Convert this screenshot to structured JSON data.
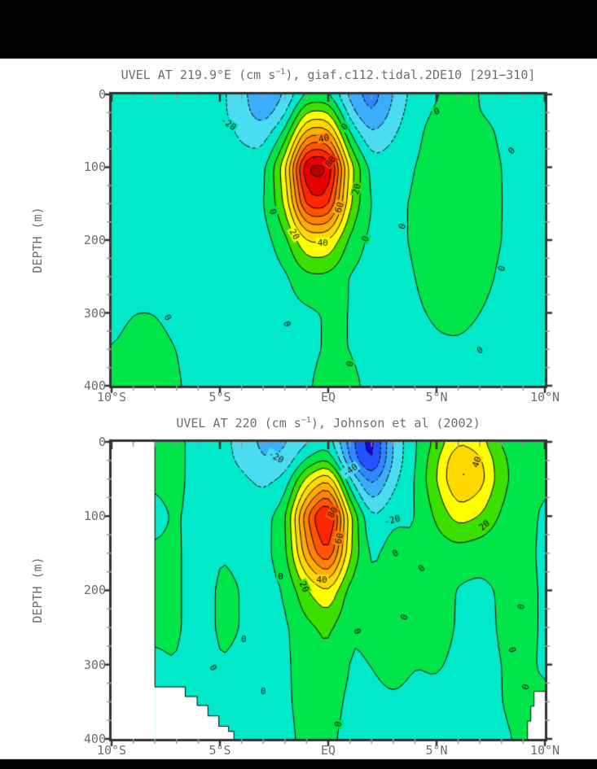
{
  "page": {
    "bg": "#000000",
    "paper": "#ffffff",
    "text_color": "#6e6e6e"
  },
  "palette": {
    "start": -60,
    "step": 10,
    "colors": [
      "#1C00D8",
      "#2353FF",
      "#2F86FF",
      "#3AAEFA",
      "#4ADDF2",
      "#00E9C8",
      "#00E54A",
      "#3BDF00",
      "#FFFF00",
      "#FFD800",
      "#FFAE00",
      "#FF8300",
      "#FF5500",
      "#FF2600",
      "#E60000",
      "#BC0000"
    ],
    "contour_line_color": "#000000",
    "frame_color": "#333333",
    "minor_tick_color": "#999999"
  },
  "chart_data": [
    {
      "type": "filled_contour",
      "title_pre": "UVEL AT 219.9°E (cm s",
      "title_sup": "−1",
      "title_post": "), giaf.c112.tidal.2DE10 [291−310]",
      "ylabel": "DEPTH (m)",
      "units": "cm s-1",
      "x_ticks": [
        "10°S",
        "5°S",
        "EQ",
        "5°N",
        "10°N"
      ],
      "y_ticks": [
        "0",
        "100",
        "200",
        "300",
        "400"
      ],
      "xlim": [
        -10,
        10
      ],
      "ylim": [
        0,
        400
      ],
      "x_minor_step": 1,
      "y_minor_step": 25,
      "contour_interval": 10,
      "lats": [
        -10,
        -9,
        -8,
        -7,
        -6,
        -5,
        -4,
        -3,
        -2,
        -1,
        0,
        1,
        2,
        3,
        4,
        5,
        6,
        7,
        8,
        9,
        10
      ],
      "depths": [
        0,
        25,
        50,
        100,
        150,
        200,
        250,
        300,
        350,
        400
      ],
      "values": [
        [
          -5,
          -5,
          -5,
          -5,
          -5,
          -7,
          -17,
          -29,
          -20,
          1,
          1,
          -24,
          -36,
          -20,
          -5,
          0,
          1,
          0,
          -2,
          -4,
          -5
        ],
        [
          -5,
          -5,
          -5,
          -5,
          -5,
          -7,
          -16,
          -26,
          -13,
          22,
          22,
          -16,
          -32,
          -17,
          -3,
          1,
          2,
          0,
          -2,
          -4,
          -5
        ],
        [
          -5,
          -5,
          -5,
          -5,
          -5,
          -6,
          -12,
          -17,
          0,
          44,
          44,
          -3,
          -22,
          -12,
          -2,
          3,
          3,
          2,
          -1,
          -3,
          -4
        ],
        [
          -5,
          -5,
          -5,
          -5,
          -5,
          -5,
          -6,
          -4,
          26,
          95,
          95,
          24,
          -5,
          -4,
          0,
          4,
          5,
          3,
          0,
          -3,
          -4
        ],
        [
          -5,
          -5,
          -5,
          -5,
          -5,
          -5,
          -5,
          -2,
          20,
          76,
          76,
          20,
          -2,
          -2,
          1,
          5,
          6,
          4,
          0,
          -3,
          -4
        ],
        [
          -4,
          -4,
          -4,
          -4,
          -5,
          -5,
          -5,
          -4,
          6,
          31,
          31,
          7,
          -3,
          -2,
          1,
          5,
          6,
          3,
          0,
          -3,
          -4
        ],
        [
          -3,
          -2,
          -2,
          -3,
          -4,
          -5,
          -5,
          -5,
          -2,
          8,
          8,
          -1,
          -4,
          -3,
          0,
          3,
          4,
          2,
          -1,
          -3,
          -4
        ],
        [
          -2,
          0,
          0,
          -2,
          -4,
          -5,
          -5,
          -5,
          -4,
          -2,
          1,
          0,
          -3,
          -3,
          -1,
          1,
          2,
          0,
          -2,
          -4,
          -5
        ],
        [
          0,
          2,
          2,
          0,
          -3,
          -4,
          -5,
          -5,
          -4,
          -2,
          1,
          0,
          -3,
          -3,
          -3,
          -1,
          -1,
          -2,
          -3,
          -4,
          -5
        ],
        [
          1,
          3,
          3,
          1,
          -3,
          -4,
          -5,
          -4,
          -4,
          -1,
          3,
          2,
          -2,
          -4,
          -4,
          -3,
          -3,
          -3,
          -4,
          -5,
          -5
        ]
      ],
      "labels": [
        {
          "lat": -4.6,
          "z": 40,
          "t": "-20",
          "r": 35
        },
        {
          "lat": -0.2,
          "z": 60,
          "t": "40",
          "r": -10
        },
        {
          "lat": 0.1,
          "z": 92,
          "t": "80",
          "r": -50
        },
        {
          "lat": 0.5,
          "z": 155,
          "t": "60",
          "r": -72
        },
        {
          "lat": -1.55,
          "z": 192,
          "t": "20",
          "r": 60
        },
        {
          "lat": -0.25,
          "z": 203,
          "t": "40",
          "r": 0
        },
        {
          "lat": 1.3,
          "z": 130,
          "t": "20",
          "r": -75
        },
        {
          "lat": -2.55,
          "z": 161,
          "t": "0",
          "r": 70
        },
        {
          "lat": 1.7,
          "z": 198,
          "t": "0",
          "r": -70
        },
        {
          "lat": 0.75,
          "z": 44,
          "t": "0",
          "r": -45
        },
        {
          "lat": 3.4,
          "z": 181,
          "t": "0",
          "r": -70
        },
        {
          "lat": 5.0,
          "z": 23,
          "t": "0",
          "r": -20
        },
        {
          "lat": 8.45,
          "z": 77,
          "t": "0",
          "r": -45
        },
        {
          "lat": 8.0,
          "z": 239,
          "t": "0",
          "r": -70
        },
        {
          "lat": -7.4,
          "z": 306,
          "t": "0",
          "r": 60
        },
        {
          "lat": -1.9,
          "z": 315,
          "t": "0",
          "r": 75
        },
        {
          "lat": 1.0,
          "z": 370,
          "t": "0",
          "r": -80
        },
        {
          "lat": 7.0,
          "z": 351,
          "t": "0",
          "r": -30
        }
      ]
    },
    {
      "type": "filled_contour",
      "title_pre": "UVEL AT 220 (cm s",
      "title_sup": "−1",
      "title_post": "), Johnson et al (2002)",
      "ylabel": "DEPTH (m)",
      "units": "cm s-1",
      "x_ticks": [
        "10°S",
        "5°S",
        "EQ",
        "5°N",
        "10°N"
      ],
      "y_ticks": [
        "0",
        "100",
        "200",
        "300",
        "400"
      ],
      "xlim": [
        -10,
        10
      ],
      "ylim": [
        0,
        400
      ],
      "x_minor_step": 1,
      "y_minor_step": 25,
      "contour_interval": 10,
      "lats": [
        -10,
        -9,
        -8,
        -7,
        -6,
        -5,
        -4,
        -3,
        -2,
        -1,
        0,
        1,
        2,
        3,
        4,
        5,
        6,
        7,
        8,
        9,
        10
      ],
      "depths": [
        0,
        25,
        50,
        100,
        150,
        200,
        250,
        300,
        350,
        400
      ],
      "values": [
        [
          null,
          null,
          2,
          2,
          -3,
          -6,
          -14,
          -23,
          -22,
          -12,
          -4,
          -36,
          -57,
          -18,
          -1,
          13,
          29,
          24,
          8,
          4,
          3
        ],
        [
          null,
          null,
          1,
          2,
          -3,
          -6,
          -12,
          -20,
          -18,
          2,
          12,
          -31,
          -56,
          -17,
          -1,
          18,
          41,
          33,
          12,
          4,
          1
        ],
        [
          null,
          null,
          1,
          2,
          -3,
          -4,
          -8,
          -13,
          -8,
          23,
          41,
          -10,
          -37,
          -13,
          0,
          20,
          43,
          36,
          13,
          4,
          1
        ],
        [
          null,
          null,
          -2,
          1,
          -3,
          -1,
          -2,
          -4,
          6,
          60,
          92,
          22,
          -11,
          -2,
          -1,
          12,
          25,
          20,
          8,
          4,
          -2
        ],
        [
          null,
          null,
          1,
          1,
          -3,
          0,
          -1,
          -3,
          5,
          48,
          74,
          20,
          -4,
          6,
          1,
          4,
          5,
          3,
          3,
          4,
          -3
        ],
        [
          null,
          null,
          1,
          1,
          -3,
          1,
          0,
          -3,
          0,
          19,
          31,
          5,
          1,
          12,
          3,
          5,
          -1,
          -2,
          1,
          4,
          -2
        ],
        [
          null,
          null,
          1,
          1,
          -3,
          1,
          0,
          -3,
          -2,
          7,
          13,
          0,
          2,
          8,
          3,
          4,
          -1,
          -3,
          1,
          4,
          -2
        ],
        [
          null,
          null,
          -1,
          0,
          -3,
          0,
          -1,
          -3,
          -2,
          5,
          8,
          -1,
          0,
          3,
          0,
          1,
          -2,
          -3,
          0,
          3,
          -2
        ],
        [
          null,
          null,
          null,
          null,
          -3,
          -2,
          -2,
          -3,
          -2,
          4,
          4,
          -2,
          -2,
          -1,
          -2,
          -2,
          -3,
          -3,
          0,
          2,
          null
        ],
        [
          null,
          null,
          null,
          null,
          null,
          null,
          -3,
          -3,
          -3,
          3,
          2,
          -3,
          -3,
          -3,
          -3,
          -3,
          -3,
          -3,
          -1,
          1,
          null
        ]
      ],
      "nodata": [
        [
          [
            -10,
            0
          ],
          [
            -8,
            0
          ],
          [
            -8,
            400
          ],
          [
            -10,
            400
          ]
        ],
        [
          [
            -8,
            330
          ],
          [
            -6.6,
            330
          ],
          [
            -6.6,
            343
          ],
          [
            -6.05,
            343
          ],
          [
            -6.05,
            355
          ],
          [
            -5.55,
            355
          ],
          [
            -5.55,
            369
          ],
          [
            -5.05,
            369
          ],
          [
            -5.05,
            383
          ],
          [
            -4.6,
            383
          ],
          [
            -4.6,
            390
          ],
          [
            -4.35,
            390
          ],
          [
            -4.35,
            400
          ],
          [
            -8,
            400
          ]
        ],
        [
          [
            10,
            336
          ],
          [
            9.5,
            336
          ],
          [
            9.5,
            356
          ],
          [
            9.35,
            356
          ],
          [
            9.35,
            376
          ],
          [
            9.2,
            376
          ],
          [
            9.2,
            400
          ],
          [
            10,
            400
          ]
        ]
      ],
      "nodata_edges": [
        [
          [
            -8,
            0
          ],
          [
            -8,
            330
          ]
        ],
        [
          [
            -8,
            330
          ],
          [
            -6.6,
            330
          ],
          [
            -6.6,
            343
          ],
          [
            -6.05,
            343
          ],
          [
            -6.05,
            355
          ],
          [
            -5.55,
            355
          ],
          [
            -5.55,
            369
          ],
          [
            -5.05,
            369
          ],
          [
            -5.05,
            383
          ],
          [
            -4.6,
            383
          ],
          [
            -4.6,
            390
          ],
          [
            -4.35,
            390
          ],
          [
            -4.35,
            400
          ]
        ],
        [
          [
            10,
            336
          ],
          [
            9.5,
            336
          ],
          [
            9.5,
            356
          ],
          [
            9.35,
            356
          ],
          [
            9.35,
            376
          ],
          [
            9.2,
            376
          ],
          [
            9.2,
            400
          ]
        ]
      ],
      "labels": [
        {
          "lat": -2.4,
          "z": 20,
          "t": "-20",
          "r": 30
        },
        {
          "lat": 1.0,
          "z": 38,
          "t": "-40",
          "r": -35
        },
        {
          "lat": 2.95,
          "z": 105,
          "t": "-20",
          "r": -15
        },
        {
          "lat": 0.2,
          "z": 95,
          "t": "80",
          "r": -60
        },
        {
          "lat": 0.5,
          "z": 130,
          "t": "60",
          "r": -75
        },
        {
          "lat": -0.3,
          "z": 185,
          "t": "40",
          "r": 0
        },
        {
          "lat": -1.1,
          "z": 195,
          "t": "20",
          "r": 65
        },
        {
          "lat": -2.2,
          "z": 181,
          "t": "0",
          "r": 0
        },
        {
          "lat": 3.1,
          "z": 150,
          "t": "0",
          "r": -30
        },
        {
          "lat": 1.35,
          "z": 255,
          "t": "0",
          "r": 75
        },
        {
          "lat": 3.5,
          "z": 236,
          "t": "0",
          "r": -70
        },
        {
          "lat": 6.85,
          "z": 27,
          "t": "40",
          "r": -70
        },
        {
          "lat": 7.2,
          "z": 112,
          "t": "20",
          "r": -40
        },
        {
          "lat": 8.9,
          "z": 222,
          "t": "0",
          "r": -75
        },
        {
          "lat": 8.5,
          "z": 280,
          "t": "0",
          "r": 75
        },
        {
          "lat": 9.1,
          "z": 330,
          "t": "0",
          "r": -70
        },
        {
          "lat": -3.9,
          "z": 265,
          "t": "0",
          "r": 0
        },
        {
          "lat": -5.3,
          "z": 304,
          "t": "0",
          "r": 60
        },
        {
          "lat": -3.0,
          "z": 336,
          "t": "0",
          "r": 0
        },
        {
          "lat": 0.45,
          "z": 380,
          "t": "0",
          "r": -80
        },
        {
          "lat": 4.3,
          "z": 170,
          "t": "0",
          "r": -45
        }
      ]
    }
  ]
}
